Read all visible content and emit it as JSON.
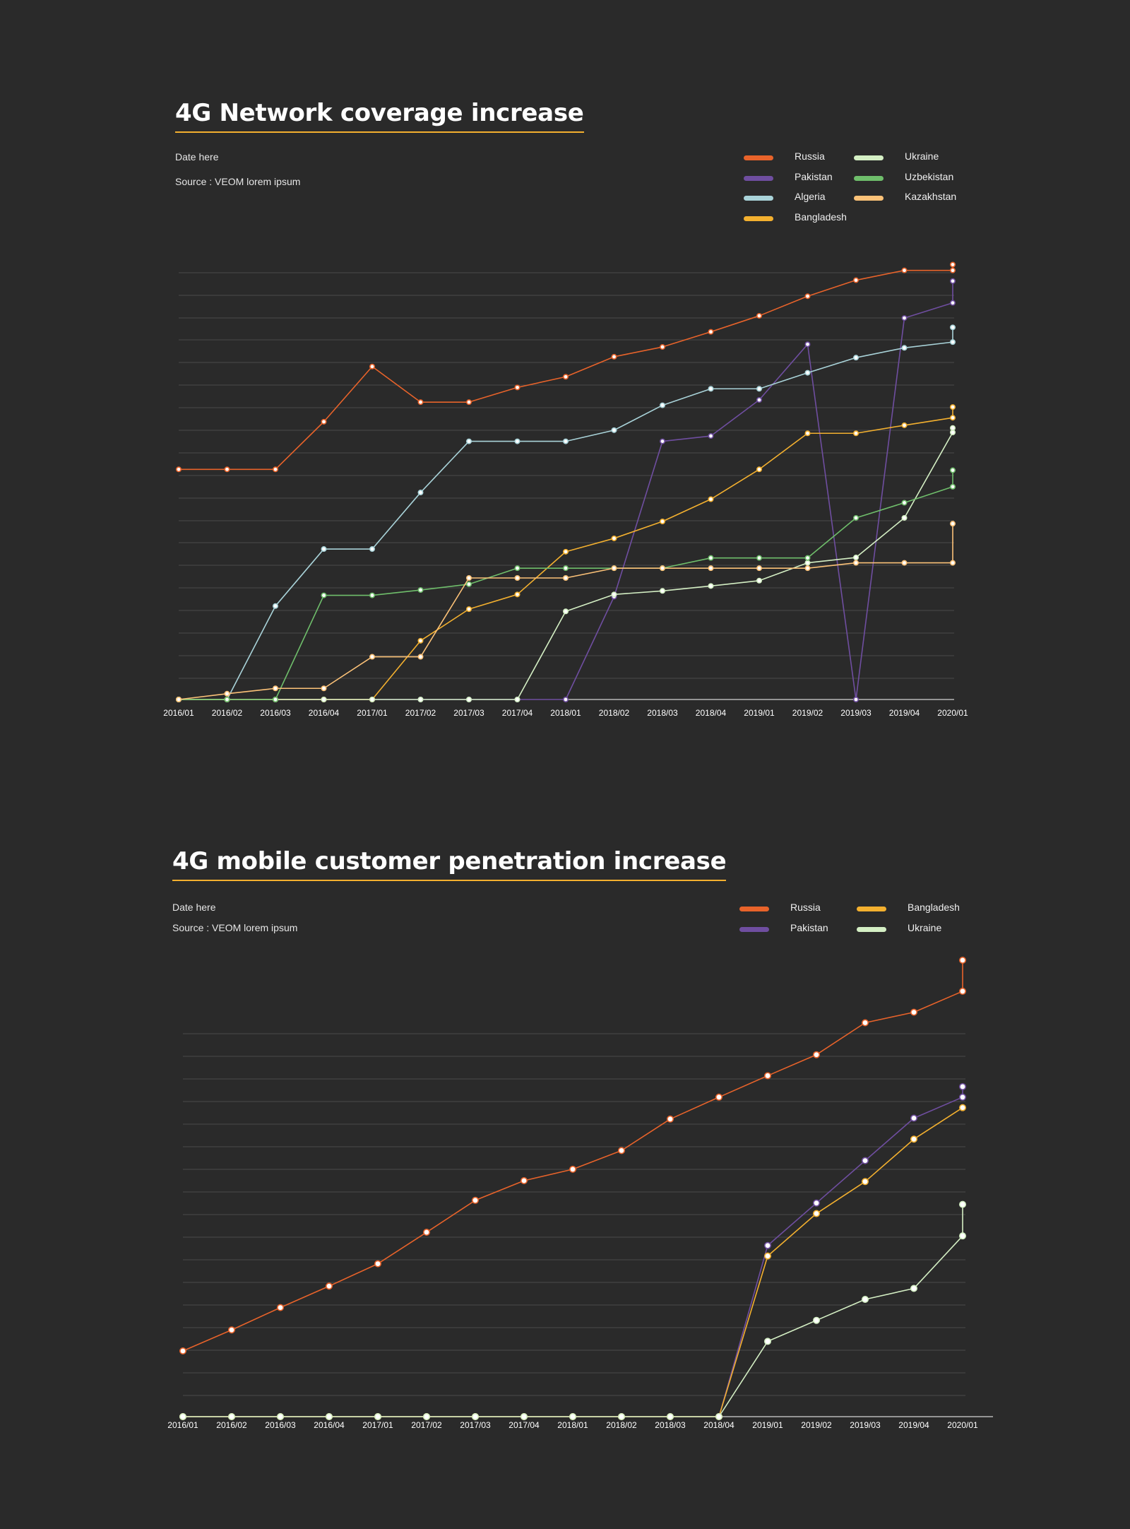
{
  "chart_data": [
    {
      "type": "line",
      "title": "4G Network coverage increase",
      "subtitle_date": "Date here",
      "source": "Source : VEOM lorem ipsum",
      "legend_position": "top-right",
      "grid": true,
      "ylim": [
        0,
        100
      ],
      "categories": [
        "2016/01",
        "2016/02",
        "2016/03",
        "2016/04",
        "2017/01",
        "2017/02",
        "2017/03",
        "2017/04",
        "2018/01",
        "2018/02",
        "2018/03",
        "2018/04",
        "2019/01",
        "2019/02",
        "2019/03",
        "2019/04",
        "2020/01"
      ],
      "series": [
        {
          "name": "Russia",
          "color": "#e8632a",
          "values": [
            51.7,
            51.7,
            51.7,
            62.4,
            74.8,
            66.8,
            66.8,
            70.1,
            72.5,
            77.0,
            79.2,
            82.6,
            86.2,
            90.6,
            94.2,
            96.4,
            96.4
          ],
          "end_marker": 97.7
        },
        {
          "name": "Pakistan",
          "color": "#6f4ea0",
          "values": [
            0,
            0,
            0,
            0,
            0,
            0,
            0,
            0,
            0,
            23.1,
            58.0,
            59.2,
            67.3,
            79.8,
            0,
            85.7,
            89.1
          ],
          "end_marker": 94.0
        },
        {
          "name": "Algeria",
          "color": "#a9d3d9",
          "values": [
            0,
            0,
            21.0,
            33.8,
            33.8,
            46.5,
            58.0,
            58.0,
            58.0,
            60.5,
            66.1,
            69.8,
            69.8,
            73.4,
            76.8,
            79.0,
            80.3
          ],
          "end_marker": 83.6
        },
        {
          "name": "Bangladesh",
          "color": "#f3b02f",
          "values": [
            0,
            0,
            0,
            0,
            0,
            13.2,
            20.3,
            23.6,
            33.2,
            36.2,
            40.0,
            45.0,
            51.7,
            59.8,
            59.8,
            61.6,
            63.3
          ],
          "end_marker": 65.7
        },
        {
          "name": "Ukraine",
          "color": "#d4efc4",
          "values": [
            0,
            0,
            0,
            0,
            0,
            0,
            0,
            0,
            19.8,
            23.6,
            24.4,
            25.5,
            26.7,
            30.7,
            31.9,
            40.8,
            60.0
          ],
          "end_marker": 61.0
        },
        {
          "name": "Uzbekistan",
          "color": "#6fbe6b",
          "values": [
            0,
            0,
            0,
            23.4,
            23.4,
            24.6,
            25.9,
            29.5,
            29.5,
            29.5,
            29.5,
            31.8,
            31.8,
            31.8,
            40.8,
            44.2,
            47.8
          ],
          "end_marker": 51.5
        },
        {
          "name": "Kazakhstan",
          "color": "#fcc278",
          "values": [
            0,
            1.3,
            2.5,
            2.5,
            9.6,
            9.6,
            27.3,
            27.3,
            27.3,
            29.5,
            29.5,
            29.5,
            29.5,
            29.5,
            30.7,
            30.7,
            30.7
          ],
          "end_marker": 39.5
        }
      ]
    },
    {
      "type": "line",
      "title": "4G mobile customer penetration increase",
      "subtitle_date": "Date here",
      "source": "Source : VEOM lorem ipsum",
      "legend_position": "top-right",
      "grid": true,
      "ylim": [
        0,
        100
      ],
      "categories": [
        "2016/01",
        "2016/02",
        "2016/03",
        "2016/04",
        "2017/01",
        "2017/02",
        "2017/03",
        "2017/04",
        "2018/01",
        "2018/02",
        "2018/03",
        "2018/04",
        "2019/01",
        "2019/02",
        "2019/03",
        "2019/04",
        "2020/01"
      ],
      "series": [
        {
          "name": "Russia",
          "color": "#e8632a",
          "values": [
            14.4,
            19.0,
            23.9,
            28.6,
            33.5,
            40.4,
            47.4,
            51.7,
            54.2,
            58.3,
            65.2,
            70.0,
            74.7,
            79.3,
            86.3,
            88.6,
            93.2
          ],
          "end_marker": 100.0
        },
        {
          "name": "Pakistan",
          "color": "#6f4ea0",
          "values": [
            0,
            0,
            0,
            0,
            0,
            0,
            0,
            0,
            0,
            0,
            0,
            0,
            37.5,
            46.8,
            56.1,
            65.4,
            70.0
          ],
          "end_marker": 72.3
        },
        {
          "name": "Bangladesh",
          "color": "#f3b02f",
          "values": [
            0,
            0,
            0,
            0,
            0,
            0,
            0,
            0,
            0,
            0,
            0,
            0,
            35.2,
            44.5,
            51.5,
            60.8,
            67.7
          ],
          "end_marker": null
        },
        {
          "name": "Ukraine",
          "color": "#d4efc4",
          "values": [
            0,
            0,
            0,
            0,
            0,
            0,
            0,
            0,
            0,
            0,
            0,
            0,
            16.5,
            21.1,
            25.7,
            28.1,
            39.6
          ],
          "end_marker": 46.5
        }
      ]
    }
  ]
}
